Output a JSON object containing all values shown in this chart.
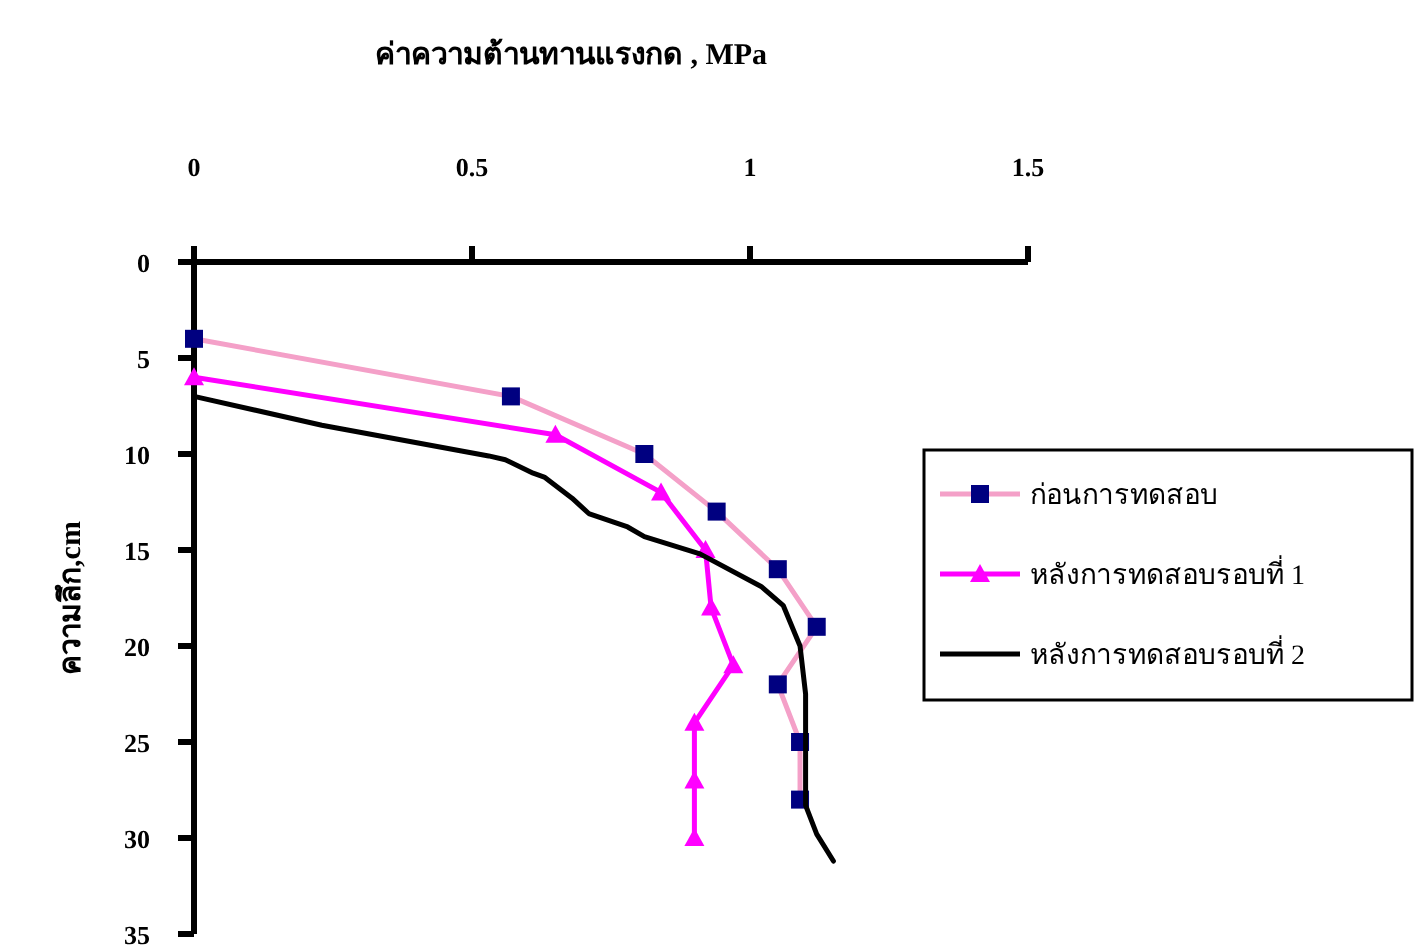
{
  "chart_data": {
    "type": "line",
    "xlabel": "ค่าความต้านทานแรงกด , MPa",
    "ylabel": "ความลึก,cm",
    "xlim": [
      0,
      1.5
    ],
    "xticks": [
      0,
      0.5,
      1,
      1.5
    ],
    "ylim": [
      35,
      0
    ],
    "yticks": [
      0,
      5,
      10,
      15,
      20,
      25,
      30,
      35
    ],
    "grid": false,
    "legend": "right",
    "series": [
      {
        "name": "ก่อนการทดสอบ",
        "color": "#f4a0c8",
        "colors": [
          "#000080",
          "#000080",
          "#000080",
          "#000080",
          "#000080",
          "#000080",
          "#000080",
          "#000080",
          "#000080"
        ],
        "marker": "square",
        "x": [
          0,
          0.57,
          0.81,
          0.94,
          1.05,
          1.12,
          1.05,
          1.09,
          1.09
        ],
        "values": [
          4,
          7,
          10,
          13,
          16,
          19,
          22,
          25,
          28
        ]
      },
      {
        "name": "หลังการทดสอบรอบที่ 1",
        "color": "#ff00ff",
        "marker": "triangle",
        "x": [
          0,
          0.65,
          0.84,
          0.92,
          0.93,
          0.97,
          0.9,
          0.9,
          0.9
        ],
        "values": [
          6,
          9,
          12,
          15,
          18,
          21,
          24,
          27,
          30
        ]
      },
      {
        "name": "หลังการทดสอบรอบที่ 2",
        "color": "#000000",
        "marker": "none",
        "x": [
          0,
          0.23,
          0.53,
          0.56,
          0.61,
          0.63,
          0.68,
          0.71,
          0.78,
          0.81,
          0.91,
          1.02,
          1.06,
          1.09,
          1.1,
          1.1,
          1.1,
          1.12,
          1.15
        ],
        "values": [
          7,
          8.5,
          10.1,
          10.3,
          11,
          11.2,
          12.3,
          13.1,
          13.8,
          14.3,
          15.2,
          16.9,
          17.9,
          20,
          22.5,
          25.2,
          28.3,
          29.8,
          31.2
        ]
      }
    ]
  }
}
